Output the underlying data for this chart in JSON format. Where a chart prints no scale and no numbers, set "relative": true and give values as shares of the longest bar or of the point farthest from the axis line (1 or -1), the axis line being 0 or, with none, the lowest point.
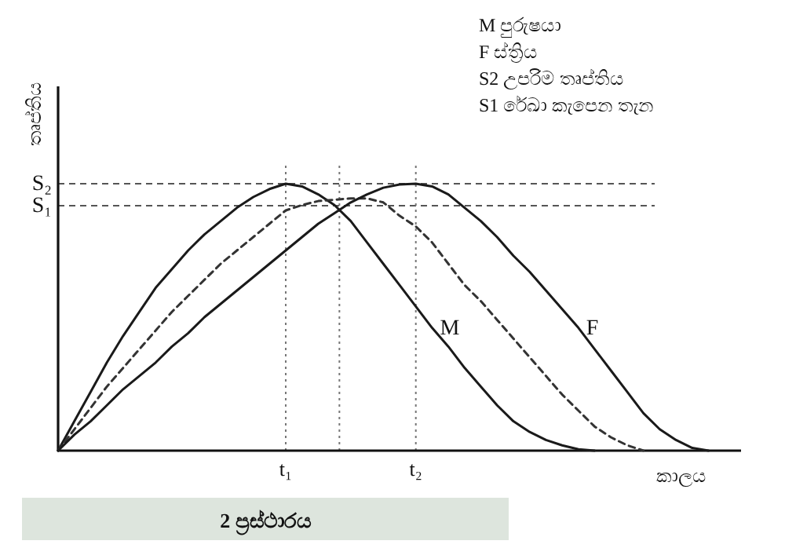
{
  "chart_data": {
    "type": "line",
    "relative": true,
    "xlabel": "කාලය",
    "ylabel": "තෘප්තිය",
    "categories": [
      null,
      null,
      null,
      null,
      null,
      null,
      null,
      null,
      null,
      null,
      null,
      null,
      null,
      null,
      "t₁",
      null,
      null,
      null,
      null,
      null,
      null,
      null,
      "t₂",
      null,
      null,
      null,
      null,
      null,
      null,
      null,
      null,
      null,
      null,
      null,
      null,
      null,
      null,
      null,
      null,
      null,
      null,
      null,
      null
    ],
    "series": [
      {
        "name": "M",
        "color": "#1a1a1a",
        "line_style": "solid",
        "values": [
          0,
          0.11,
          0.22,
          0.33,
          0.43,
          0.52,
          0.61,
          0.68,
          0.75,
          0.81,
          0.86,
          0.91,
          0.95,
          0.98,
          1,
          0.99,
          0.96,
          0.92,
          0.86,
          0.78,
          0.7,
          0.62,
          0.54,
          0.46,
          0.39,
          0.31,
          0.24,
          0.17,
          0.11,
          0.07,
          0.04,
          0.02,
          0.005,
          0,
          null,
          null,
          null,
          null,
          null,
          null,
          null,
          null,
          null
        ]
      },
      {
        "color": "#333333",
        "line_style": "dashed",
        "values": [
          0,
          0.08,
          0.16,
          0.24,
          0.31,
          0.38,
          0.45,
          0.52,
          0.58,
          0.64,
          0.7,
          0.75,
          0.8,
          0.85,
          0.9,
          0.92,
          0.935,
          0.94,
          0.945,
          0.945,
          0.93,
          0.88,
          0.84,
          0.78,
          0.7,
          0.62,
          0.56,
          0.49,
          0.42,
          0.35,
          0.28,
          0.21,
          0.15,
          0.09,
          0.05,
          0.02,
          0,
          null,
          null,
          null,
          null,
          null,
          null
        ]
      },
      {
        "name": "F",
        "color": "#1a1a1a",
        "line_style": "solid",
        "values": [
          0,
          0.06,
          0.11,
          0.17,
          0.23,
          0.28,
          0.33,
          0.39,
          0.44,
          0.5,
          0.55,
          0.6,
          0.65,
          0.7,
          0.75,
          0.8,
          0.85,
          0.89,
          0.93,
          0.96,
          0.985,
          0.997,
          1,
          0.99,
          0.96,
          0.91,
          0.86,
          0.8,
          0.73,
          0.67,
          0.6,
          0.53,
          0.46,
          0.38,
          0.3,
          0.22,
          0.14,
          0.08,
          0.04,
          0.01,
          0,
          null,
          null
        ]
      }
    ],
    "ref_lines": [
      {
        "axis": "y",
        "value": 1,
        "label": "S₂",
        "line_style": "dashed",
        "color": "#555555"
      },
      {
        "axis": "y",
        "value": 0.918,
        "label": "S₁",
        "line_style": "dashed",
        "color": "#555555"
      }
    ],
    "grid": "x",
    "annotations": [
      "M  පුරුෂයා",
      "F  ස්ත්‍රිය",
      "S2  උපරිම තෘප්තිය",
      "S1  රේඛා කැපෙන තැන",
      "2 ප්‍රස්ථාරය"
    ]
  }
}
